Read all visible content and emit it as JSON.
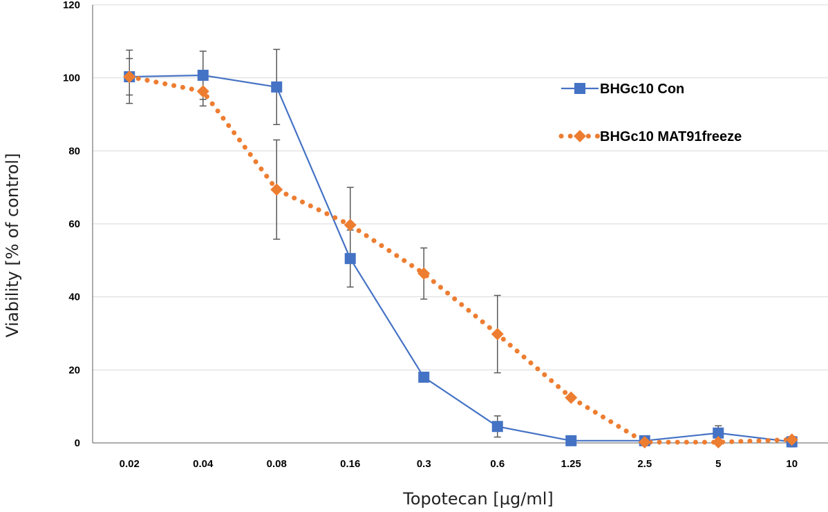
{
  "chart_data": {
    "type": "line",
    "xlabel": "Topotecan  [µg/ml]",
    "ylabel": "Viability [% of control]",
    "categories": [
      "0.02",
      "0.04",
      "0.08",
      "0.16",
      "0.3",
      "0.6",
      "1.25",
      "2.5",
      "5",
      "10"
    ],
    "ylim": [
      0,
      120
    ],
    "yticks": [
      "0",
      "20",
      "40",
      "60",
      "80",
      "100",
      "120"
    ],
    "grid": true,
    "legend_position": "top-right",
    "series": [
      {
        "name": "BHGc10 Con",
        "color": "#4472C4",
        "marker": "square",
        "line": "solid",
        "values": [
          100.3,
          100.7,
          97.5,
          50.5,
          18.0,
          4.5,
          0.6,
          0.6,
          2.7,
          0.3
        ],
        "errors": [
          7.3,
          6.6,
          10.3,
          7.8,
          1.3,
          2.9,
          0.5,
          0.5,
          2.0,
          1.4
        ]
      },
      {
        "name": "BHGc10 MAT91freeze",
        "color": "#ED7D31",
        "marker": "diamond",
        "line": "dotted",
        "values": [
          100.3,
          96.3,
          69.4,
          59.7,
          46.4,
          29.8,
          12.4,
          0.2,
          0.2,
          0.9
        ],
        "errors": [
          5.0,
          4.0,
          13.6,
          10.3,
          7.0,
          10.6,
          0.3,
          0.3,
          0.3,
          0.8
        ]
      }
    ]
  }
}
